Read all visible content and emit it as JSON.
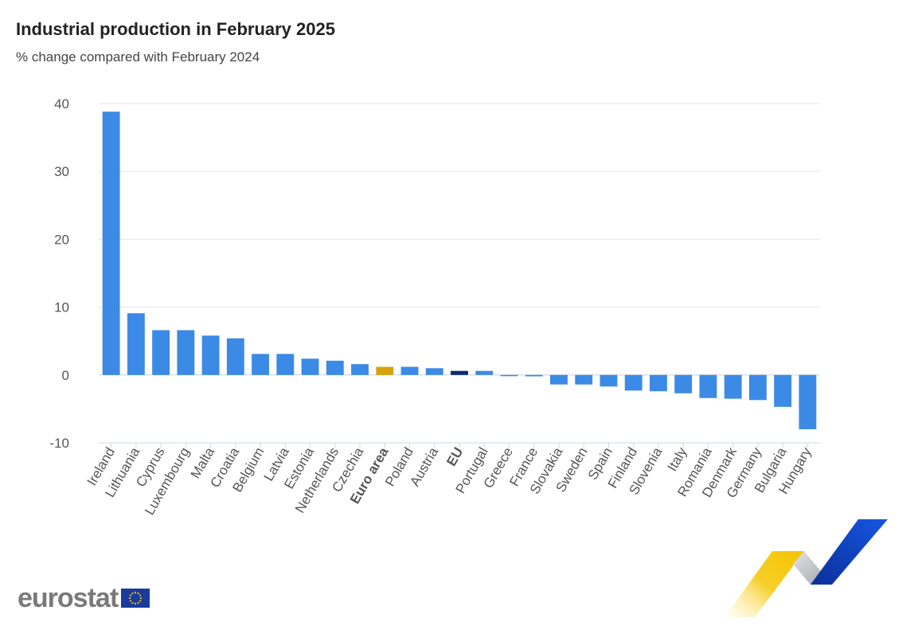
{
  "title": "Industrial production in February 2025",
  "subtitle": "% change compared with February 2024",
  "logo": {
    "text": "eurostat",
    "flag_icon": "eu-flag-icon"
  },
  "colors": {
    "country": "#3b8ae6",
    "euro_area": "#d4a40c",
    "eu": "#0e2a73",
    "grid": "#dde7f3",
    "axis_text": "#555555",
    "logo_gray": "#7a7a7a",
    "decor_yellow": "#f5c400",
    "decor_blue": "#1246c8",
    "decor_gray": "#b9bcc2"
  },
  "chart_data": {
    "type": "bar",
    "title": "Industrial production in February 2025",
    "subtitle": "% change compared with February 2024",
    "xlabel": "",
    "ylabel": "",
    "ylim": [
      -10,
      40
    ],
    "yticks": [
      -10,
      0,
      10,
      20,
      30,
      40
    ],
    "grid": true,
    "legend": "none",
    "categories": [
      "Ireland",
      "Lithuania",
      "Cyprus",
      "Luxembourg",
      "Malta",
      "Croatia",
      "Belgium",
      "Latvia",
      "Estonia",
      "Netherlands",
      "Czechia",
      "Euro area",
      "Poland",
      "Austria",
      "EU",
      "Portugal",
      "Greece",
      "France",
      "Slovakia",
      "Sweden",
      "Spain",
      "Finland",
      "Slovenia",
      "Italy",
      "Romania",
      "Denmark",
      "Germany",
      "Bulgaria",
      "Hungary"
    ],
    "values": [
      38.8,
      9.1,
      6.6,
      6.6,
      5.8,
      5.4,
      3.1,
      3.1,
      2.4,
      2.1,
      1.6,
      1.2,
      1.2,
      1.0,
      0.6,
      0.6,
      -0.1,
      -0.2,
      -1.4,
      -1.4,
      -1.7,
      -2.3,
      -2.4,
      -2.7,
      -3.4,
      -3.5,
      -3.7,
      -4.7,
      -8.0
    ],
    "highlight": {
      "Euro area": "euro_area",
      "EU": "eu"
    }
  }
}
